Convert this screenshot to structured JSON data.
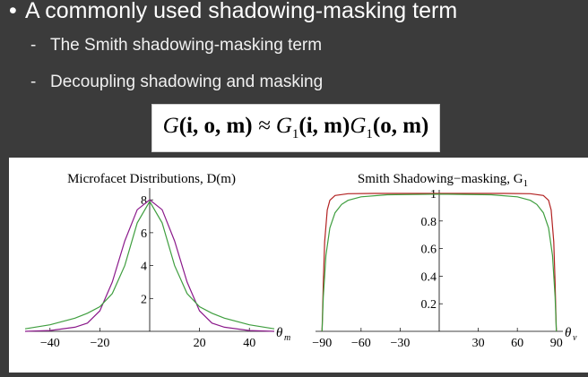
{
  "slide": {
    "bullet": "A commonly used shadowing-masking term",
    "sub_items": [
      "The Smith shadowing-masking term",
      "Decoupling shadowing and masking"
    ],
    "formula": {
      "G": "G",
      "args_left": "(i, o, m)",
      "approx": "≈",
      "G1_a": "G",
      "args_a": "(i, m)",
      "G1_b": "G",
      "args_b": "(o, m)",
      "subscript": "1"
    }
  },
  "chart_data": [
    {
      "type": "line",
      "title": "Microfacet Distributions, D(m)",
      "xlabel": "θm",
      "ylabel": "",
      "xlim": [
        -50,
        50
      ],
      "ylim": [
        0,
        8.5
      ],
      "xticks": [
        -40,
        -20,
        20,
        40
      ],
      "yticks": [
        2,
        4,
        6,
        8
      ],
      "xtick_labels": [
        "−40",
        "−20",
        "20",
        "40"
      ],
      "ytick_labels": [
        "2",
        "4",
        "6",
        "8"
      ],
      "colors": [
        "#8b1a8b",
        "#3f9e3f"
      ],
      "series": [
        {
          "x": [
            -50,
            -40,
            -30,
            -25,
            -20,
            -15,
            -10,
            -5,
            0,
            5,
            10,
            15,
            20,
            25,
            30,
            40,
            50
          ],
          "y": [
            0.0,
            0.05,
            0.25,
            0.5,
            1.25,
            3.0,
            5.5,
            7.4,
            8.0,
            7.4,
            5.5,
            3.0,
            1.25,
            0.5,
            0.25,
            0.05,
            0.0
          ]
        },
        {
          "x": [
            -50,
            -40,
            -30,
            -25,
            -20,
            -15,
            -10,
            -5,
            0,
            5,
            10,
            15,
            20,
            25,
            30,
            40,
            50
          ],
          "y": [
            0.15,
            0.4,
            0.8,
            1.1,
            1.5,
            2.3,
            4.0,
            6.6,
            7.9,
            6.6,
            4.0,
            2.3,
            1.5,
            1.1,
            0.8,
            0.4,
            0.15
          ]
        }
      ]
    },
    {
      "type": "line",
      "title": "Smith Shadowing−masking, G",
      "title_subscript": "1",
      "xlabel": "θv",
      "ylabel": "",
      "xlim": [
        -95,
        95
      ],
      "ylim": [
        0,
        1
      ],
      "xticks": [
        -90,
        -60,
        -30,
        30,
        60,
        90
      ],
      "yticks": [
        0.2,
        0.4,
        0.6,
        0.8,
        1
      ],
      "xtick_labels": [
        "−90",
        "−60",
        "−30",
        "30",
        "60",
        "90"
      ],
      "ytick_labels": [
        "0.2",
        "0.4",
        "0.6",
        "0.8",
        "1"
      ],
      "colors": [
        "#b22222",
        "#3f9e3f"
      ],
      "series": [
        {
          "x": [
            -90,
            -89,
            -88,
            -86,
            -84,
            -80,
            -70,
            -50,
            0,
            50,
            70,
            80,
            84,
            86,
            88,
            89,
            90
          ],
          "y": [
            0.0,
            0.35,
            0.65,
            0.88,
            0.95,
            0.985,
            0.998,
            1.0,
            1.0,
            1.0,
            0.998,
            0.985,
            0.95,
            0.88,
            0.65,
            0.35,
            0.0
          ]
        },
        {
          "x": [
            -90,
            -89,
            -87,
            -84,
            -80,
            -75,
            -70,
            -60,
            -40,
            0,
            40,
            60,
            70,
            75,
            80,
            84,
            87,
            89,
            90
          ],
          "y": [
            0.0,
            0.25,
            0.55,
            0.75,
            0.86,
            0.92,
            0.95,
            0.975,
            0.99,
            0.995,
            0.99,
            0.975,
            0.95,
            0.92,
            0.86,
            0.75,
            0.55,
            0.25,
            0.0
          ]
        }
      ]
    }
  ]
}
